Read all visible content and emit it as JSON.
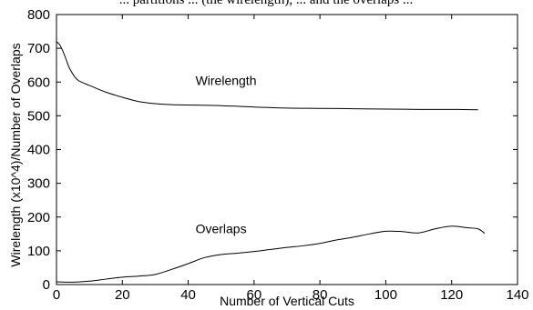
{
  "caption_top": "... partitions ... (the wirelength), ... and the overlaps ...",
  "chart_data": {
    "type": "line",
    "xlabel": "Number of Vertical Cuts",
    "ylabel": "Wirelength (x10^4)/Number of Overlaps",
    "xlim": [
      0,
      140
    ],
    "ylim": [
      0,
      800
    ],
    "xticks": [
      0,
      20,
      40,
      60,
      80,
      100,
      120,
      140
    ],
    "yticks": [
      0,
      100,
      200,
      300,
      400,
      500,
      600,
      700,
      800
    ],
    "grid": false,
    "legend": "none",
    "series": [
      {
        "name": "Wirelength",
        "x": [
          0,
          1,
          2,
          3,
          4,
          6,
          8,
          10,
          15,
          20,
          25,
          30,
          35,
          40,
          50,
          60,
          70,
          80,
          90,
          100,
          110,
          120,
          128
        ],
        "y": [
          720,
          710,
          690,
          665,
          640,
          610,
          598,
          590,
          570,
          555,
          542,
          536,
          533,
          532,
          530,
          526,
          523,
          522,
          521,
          520,
          519,
          519,
          518
        ],
        "color": "#000000"
      },
      {
        "name": "Overlaps",
        "x": [
          0,
          5,
          10,
          15,
          20,
          25,
          30,
          35,
          40,
          45,
          50,
          55,
          60,
          65,
          70,
          75,
          80,
          85,
          90,
          95,
          100,
          105,
          110,
          115,
          120,
          125,
          128,
          130
        ],
        "y": [
          8,
          7,
          10,
          16,
          22,
          25,
          30,
          45,
          62,
          80,
          89,
          93,
          98,
          104,
          110,
          115,
          122,
          132,
          140,
          150,
          158,
          157,
          153,
          165,
          173,
          168,
          165,
          152
        ],
        "color": "#000000"
      }
    ],
    "annotations": [
      {
        "text": "Wirelength",
        "x": 40,
        "y": 600
      },
      {
        "text": "Overlaps",
        "x": 40,
        "y": 160
      }
    ]
  }
}
